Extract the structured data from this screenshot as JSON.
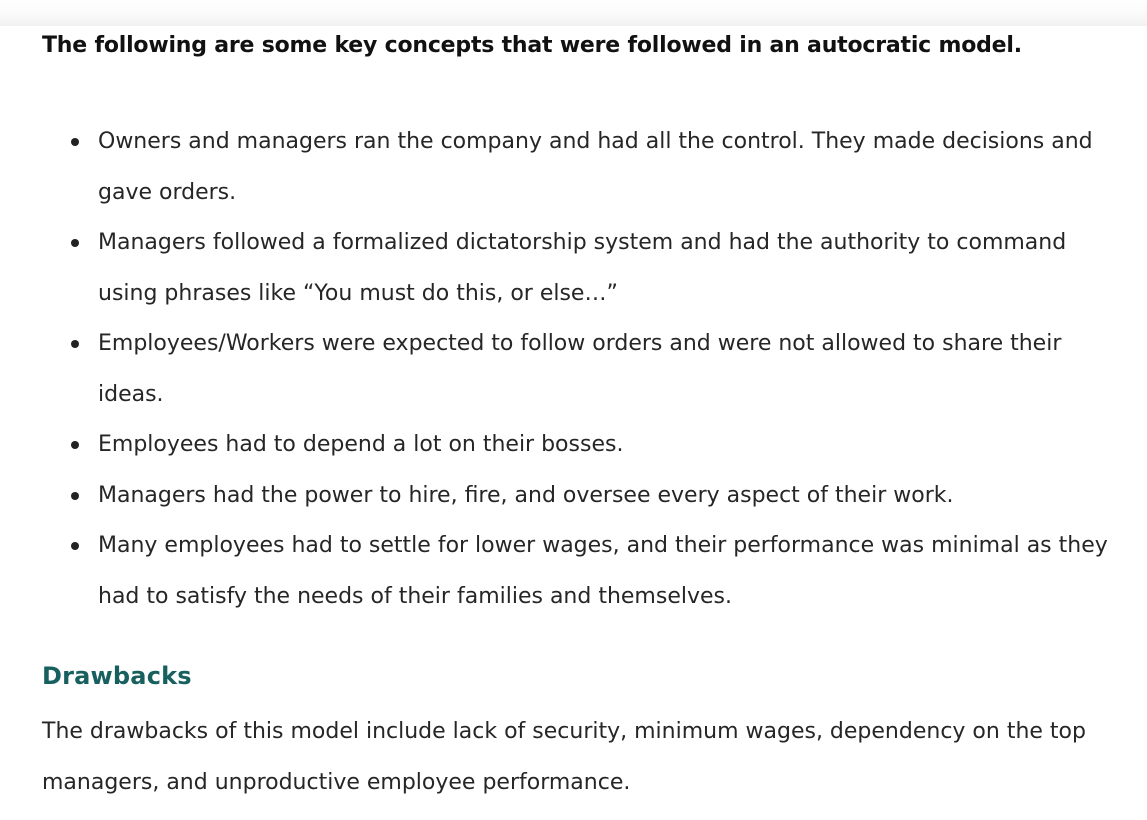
{
  "article": {
    "intro": "The following are some key concepts that were followed in an autocratic model.",
    "concepts": [
      "Owners and managers ran the company and had all the control. They made decisions and gave orders.",
      "Managers followed a formalized dictatorship system and had the authority to command using phrases like “You must do this, or else…”",
      "Employees/Workers were expected to follow orders and were not allowed to share their ideas.",
      "Employees had to depend a lot on their bosses.",
      "Managers had the power to hire, fire, and oversee every aspect of their work.",
      "Many employees had to settle for lower wages, and their performance was minimal as they had to satisfy the needs of their families and themselves."
    ],
    "drawbacks": {
      "title": "Drawbacks",
      "text": "The drawbacks of this model include lack of security, minimum wages, dependency on the top managers, and unproductive employee performance."
    }
  },
  "colors": {
    "heading_accent": "#17605f",
    "body_text": "#262626"
  }
}
